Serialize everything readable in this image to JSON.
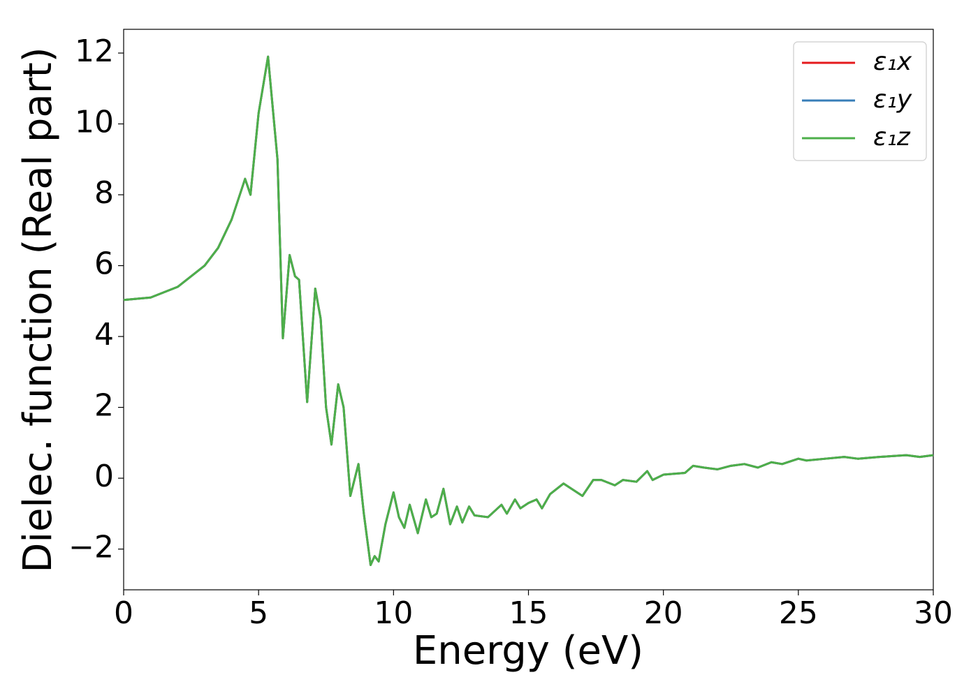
{
  "chart_data": {
    "type": "line",
    "xlabel": "Energy (eV)",
    "ylabel": "Dielec. function (Real part)",
    "x": [
      0,
      1,
      2,
      3,
      3.5,
      4,
      4.5,
      4.7,
      5.0,
      5.35,
      5.7,
      5.9,
      6.15,
      6.35,
      6.5,
      6.8,
      7.1,
      7.3,
      7.5,
      7.7,
      7.95,
      8.15,
      8.4,
      8.7,
      8.9,
      9.15,
      9.3,
      9.45,
      9.7,
      10.0,
      10.2,
      10.4,
      10.6,
      10.9,
      11.2,
      11.4,
      11.6,
      11.85,
      12.1,
      12.35,
      12.55,
      12.8,
      13.0,
      13.5,
      14.0,
      14.2,
      14.5,
      14.7,
      15.0,
      15.3,
      15.5,
      15.8,
      16.3,
      16.6,
      17.0,
      17.4,
      17.7,
      18.2,
      18.5,
      19.0,
      19.4,
      19.6,
      20.0,
      20.8,
      21.1,
      21.5,
      22.0,
      22.5,
      23.0,
      23.5,
      24.0,
      24.4,
      25.0,
      25.3,
      26.0,
      26.7,
      27.2,
      28.0,
      29.0,
      29.5,
      30
    ],
    "series": [
      {
        "name": "ε₁x",
        "color": "#e41a1c",
        "values": [
          5.03,
          5.1,
          5.4,
          6.0,
          6.5,
          7.3,
          8.45,
          8.0,
          10.3,
          11.9,
          9.0,
          3.95,
          6.3,
          5.7,
          5.6,
          2.15,
          5.35,
          4.5,
          2.0,
          0.95,
          2.65,
          2.0,
          -0.5,
          0.4,
          -1.0,
          -2.45,
          -2.2,
          -2.35,
          -1.3,
          -0.4,
          -1.1,
          -1.4,
          -0.75,
          -1.55,
          -0.6,
          -1.1,
          -1.0,
          -0.3,
          -1.3,
          -0.8,
          -1.25,
          -0.8,
          -1.05,
          -1.1,
          -0.75,
          -1.0,
          -0.6,
          -0.85,
          -0.7,
          -0.6,
          -0.85,
          -0.45,
          -0.15,
          -0.3,
          -0.5,
          -0.05,
          -0.05,
          -0.2,
          -0.05,
          -0.1,
          0.2,
          -0.05,
          0.1,
          0.15,
          0.35,
          0.3,
          0.25,
          0.35,
          0.4,
          0.3,
          0.45,
          0.4,
          0.55,
          0.5,
          0.55,
          0.6,
          0.55,
          0.6,
          0.65,
          0.6,
          0.65
        ]
      },
      {
        "name": "ε₁y",
        "color": "#377eb8",
        "values": [
          5.03,
          5.1,
          5.4,
          6.0,
          6.5,
          7.3,
          8.45,
          8.0,
          10.3,
          11.9,
          9.0,
          3.95,
          6.3,
          5.7,
          5.6,
          2.15,
          5.35,
          4.5,
          2.0,
          0.95,
          2.65,
          2.0,
          -0.5,
          0.4,
          -1.0,
          -2.45,
          -2.2,
          -2.35,
          -1.3,
          -0.4,
          -1.1,
          -1.4,
          -0.75,
          -1.55,
          -0.6,
          -1.1,
          -1.0,
          -0.3,
          -1.3,
          -0.8,
          -1.25,
          -0.8,
          -1.05,
          -1.1,
          -0.75,
          -1.0,
          -0.6,
          -0.85,
          -0.7,
          -0.6,
          -0.85,
          -0.45,
          -0.15,
          -0.3,
          -0.5,
          -0.05,
          -0.05,
          -0.2,
          -0.05,
          -0.1,
          0.2,
          -0.05,
          0.1,
          0.15,
          0.35,
          0.3,
          0.25,
          0.35,
          0.4,
          0.3,
          0.45,
          0.4,
          0.55,
          0.5,
          0.55,
          0.6,
          0.55,
          0.6,
          0.65,
          0.6,
          0.65
        ]
      },
      {
        "name": "ε₁z",
        "color": "#4daf4a",
        "values": [
          5.03,
          5.1,
          5.4,
          6.0,
          6.5,
          7.3,
          8.45,
          8.0,
          10.3,
          11.9,
          9.0,
          3.95,
          6.3,
          5.7,
          5.6,
          2.15,
          5.35,
          4.5,
          2.0,
          0.95,
          2.65,
          2.0,
          -0.5,
          0.4,
          -1.0,
          -2.45,
          -2.2,
          -2.35,
          -1.3,
          -0.4,
          -1.1,
          -1.4,
          -0.75,
          -1.55,
          -0.6,
          -1.1,
          -1.0,
          -0.3,
          -1.3,
          -0.8,
          -1.25,
          -0.8,
          -1.05,
          -1.1,
          -0.75,
          -1.0,
          -0.6,
          -0.85,
          -0.7,
          -0.6,
          -0.85,
          -0.45,
          -0.15,
          -0.3,
          -0.5,
          -0.05,
          -0.05,
          -0.2,
          -0.05,
          -0.1,
          0.2,
          -0.05,
          0.1,
          0.15,
          0.35,
          0.3,
          0.25,
          0.35,
          0.4,
          0.3,
          0.45,
          0.4,
          0.55,
          0.5,
          0.55,
          0.6,
          0.55,
          0.6,
          0.65,
          0.6,
          0.65
        ]
      }
    ],
    "xlim": [
      0,
      30
    ],
    "xticks": [
      0,
      5,
      10,
      15,
      20,
      25,
      30
    ],
    "ylim": [
      -3.15,
      12.67
    ],
    "yticks": [
      {
        "value": -2,
        "label": "−2"
      },
      0,
      2,
      4,
      6,
      8,
      10,
      12
    ],
    "grid": false,
    "legend": "upper right"
  }
}
